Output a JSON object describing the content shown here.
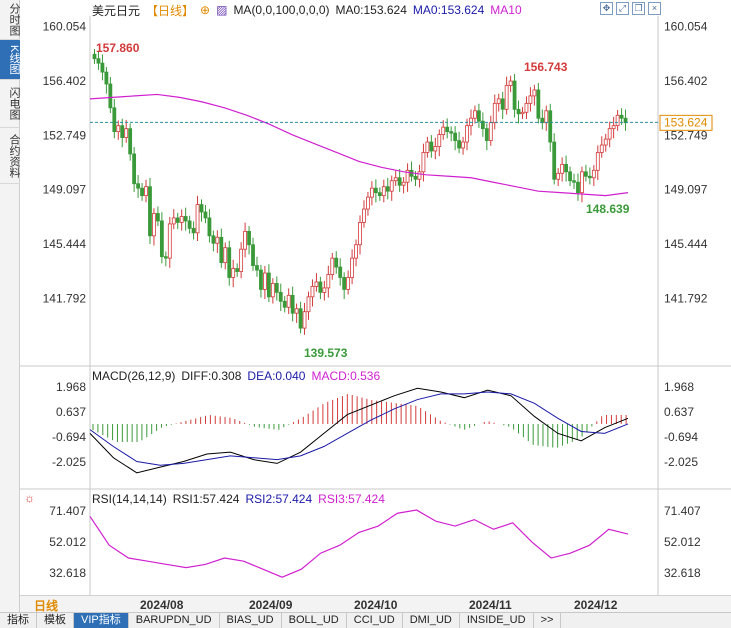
{
  "side_tabs": [
    "分时图",
    "K线图",
    "闪电图",
    "合约资料"
  ],
  "header": {
    "symbol": "美元日元",
    "period": "【日线】",
    "ma_label": "MA(0,0,100,0,0,0)",
    "ma0": "MA0:153.624",
    "ma0b": "MA0:153.624",
    "ma10": "MA10"
  },
  "colors": {
    "up": "#d33a3a",
    "down": "#3a9a3a",
    "ma": "#d020d0",
    "dif": "#000000",
    "dea": "#1a1aa8"
  },
  "price_axis": {
    "ticks": [
      "160.054",
      "156.402",
      "152.749",
      "149.097",
      "145.444",
      "141.792"
    ],
    "current": "153.624"
  },
  "annotations": {
    "high1": "157.860",
    "high2": "156.743",
    "low1": "139.573",
    "low2": "148.639"
  },
  "macd": {
    "label": "MACD(26,12,9)",
    "diff": "DIFF:0.308",
    "dea": "DEA:0.040",
    "macd": "MACD:0.536",
    "ticks": [
      "1.968",
      "0.637",
      "-0.694",
      "-2.025"
    ]
  },
  "rsi": {
    "label": "RSI(14,14,14)",
    "rsi1": "RSI1:57.424",
    "rsi2": "RSI2:57.424",
    "rsi3": "RSI3:57.424",
    "ticks": [
      "71.407",
      "52.012",
      "32.618"
    ]
  },
  "date_axis": {
    "period": "日线",
    "labels": [
      "2024/08",
      "2024/09",
      "2024/10",
      "2024/11",
      "2024/12"
    ]
  },
  "bottom_tabs": [
    "指标",
    "模板",
    "VIP指标",
    "BARUPDN_UD",
    "BIAS_UD",
    "BOLL_UD",
    "CCI_UD",
    "DMI_UD",
    "INSIDE_UD",
    ">>"
  ],
  "chart_data": {
    "type": "candlestick",
    "ylim": [
      139.0,
      160.5
    ],
    "closes": [
      157.9,
      157.6,
      157.0,
      156.2,
      154.6,
      153.0,
      153.4,
      152.6,
      153.2,
      151.5,
      149.5,
      149.2,
      148.7,
      149.3,
      146.0,
      147.5,
      147.0,
      144.6,
      144.5,
      146.8,
      147.2,
      146.9,
      147.3,
      147.0,
      146.5,
      146.2,
      148.1,
      147.6,
      147.2,
      146.0,
      145.5,
      145.9,
      144.2,
      145.2,
      143.2,
      143.8,
      143.6,
      145.1,
      146.3,
      145.4,
      144.0,
      143.7,
      142.4,
      143.5,
      141.9,
      142.8,
      142.2,
      141.6,
      141.2,
      142.0,
      140.8,
      141.1,
      139.8,
      140.9,
      141.9,
      142.6,
      142.9,
      142.2,
      142.5,
      143.4,
      144.5,
      143.9,
      143.2,
      142.4,
      143.2,
      144.5,
      145.4,
      146.9,
      147.8,
      148.6,
      149.2,
      148.9,
      148.7,
      149.3,
      149.0,
      149.7,
      149.9,
      149.4,
      149.6,
      150.4,
      150.0,
      149.8,
      150.3,
      151.6,
      152.3,
      151.7,
      152.0,
      152.8,
      153.3,
      153.0,
      152.9,
      152.4,
      151.9,
      152.3,
      153.4,
      153.9,
      154.4,
      153.7,
      153.2,
      152.4,
      153.6,
      154.9,
      155.2,
      154.5,
      156.1,
      156.4,
      154.5,
      154.2,
      154.3,
      154.9,
      155.4,
      155.8,
      153.9,
      153.6,
      154.4,
      152.3,
      149.8,
      150.2,
      150.8,
      150.3,
      149.7,
      149.6,
      148.9,
      150.3,
      150.0,
      149.9,
      150.4,
      151.6,
      152.1,
      152.5,
      153.2,
      153.4,
      154.1,
      153.9,
      153.6
    ],
    "ma_values": [
      155.2,
      155.3,
      155.4,
      155.5,
      155.3,
      155.0,
      154.6,
      154.1,
      153.5,
      152.8,
      152.2,
      151.6,
      151.0,
      150.6,
      150.3,
      150.1,
      150.0,
      149.9,
      149.6,
      149.3,
      149.0,
      148.9,
      148.8,
      148.7,
      148.9
    ],
    "macd_dif": [
      -0.5,
      -1.8,
      -2.6,
      -2.3,
      -2.0,
      -1.6,
      -1.5,
      -1.9,
      -2.1,
      -1.5,
      -0.5,
      0.5,
      1.0,
      1.5,
      1.9,
      1.7,
      1.4,
      1.8,
      1.5,
      0.4,
      -0.5,
      -0.9,
      -0.2,
      0.3
    ],
    "macd_dea": [
      -0.3,
      -1.2,
      -2.0,
      -2.2,
      -2.1,
      -1.9,
      -1.7,
      -1.8,
      -1.9,
      -1.7,
      -1.2,
      -0.5,
      0.2,
      0.8,
      1.3,
      1.6,
      1.6,
      1.7,
      1.6,
      1.1,
      0.3,
      -0.4,
      -0.5,
      0.0
    ],
    "rsi_values": [
      68,
      50,
      42,
      40,
      38,
      36,
      38,
      42,
      40,
      35,
      30,
      35,
      45,
      50,
      58,
      62,
      70,
      72,
      65,
      62,
      66,
      60,
      64,
      52,
      42,
      45,
      50,
      60,
      57
    ]
  }
}
